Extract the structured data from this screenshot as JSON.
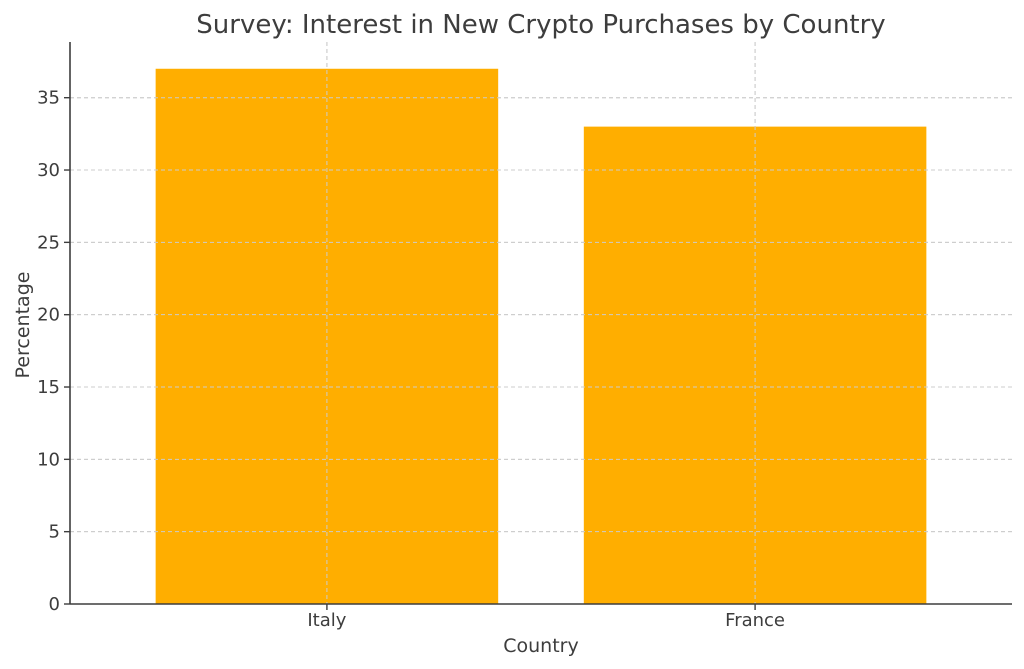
{
  "chart_data": {
    "type": "bar",
    "title": "Survey: Interest in New Crypto Purchases by Country",
    "xlabel": "Country",
    "ylabel": "Percentage",
    "categories": [
      "Italy",
      "France"
    ],
    "values": [
      37,
      33
    ],
    "ylim": [
      0,
      38.85
    ],
    "yticks": [
      0,
      5,
      10,
      15,
      20,
      25,
      30,
      35
    ],
    "grid": true,
    "bar_color": "#FFAE00",
    "text_color": "#3d3d3d",
    "grid_color": "#cccccc"
  }
}
